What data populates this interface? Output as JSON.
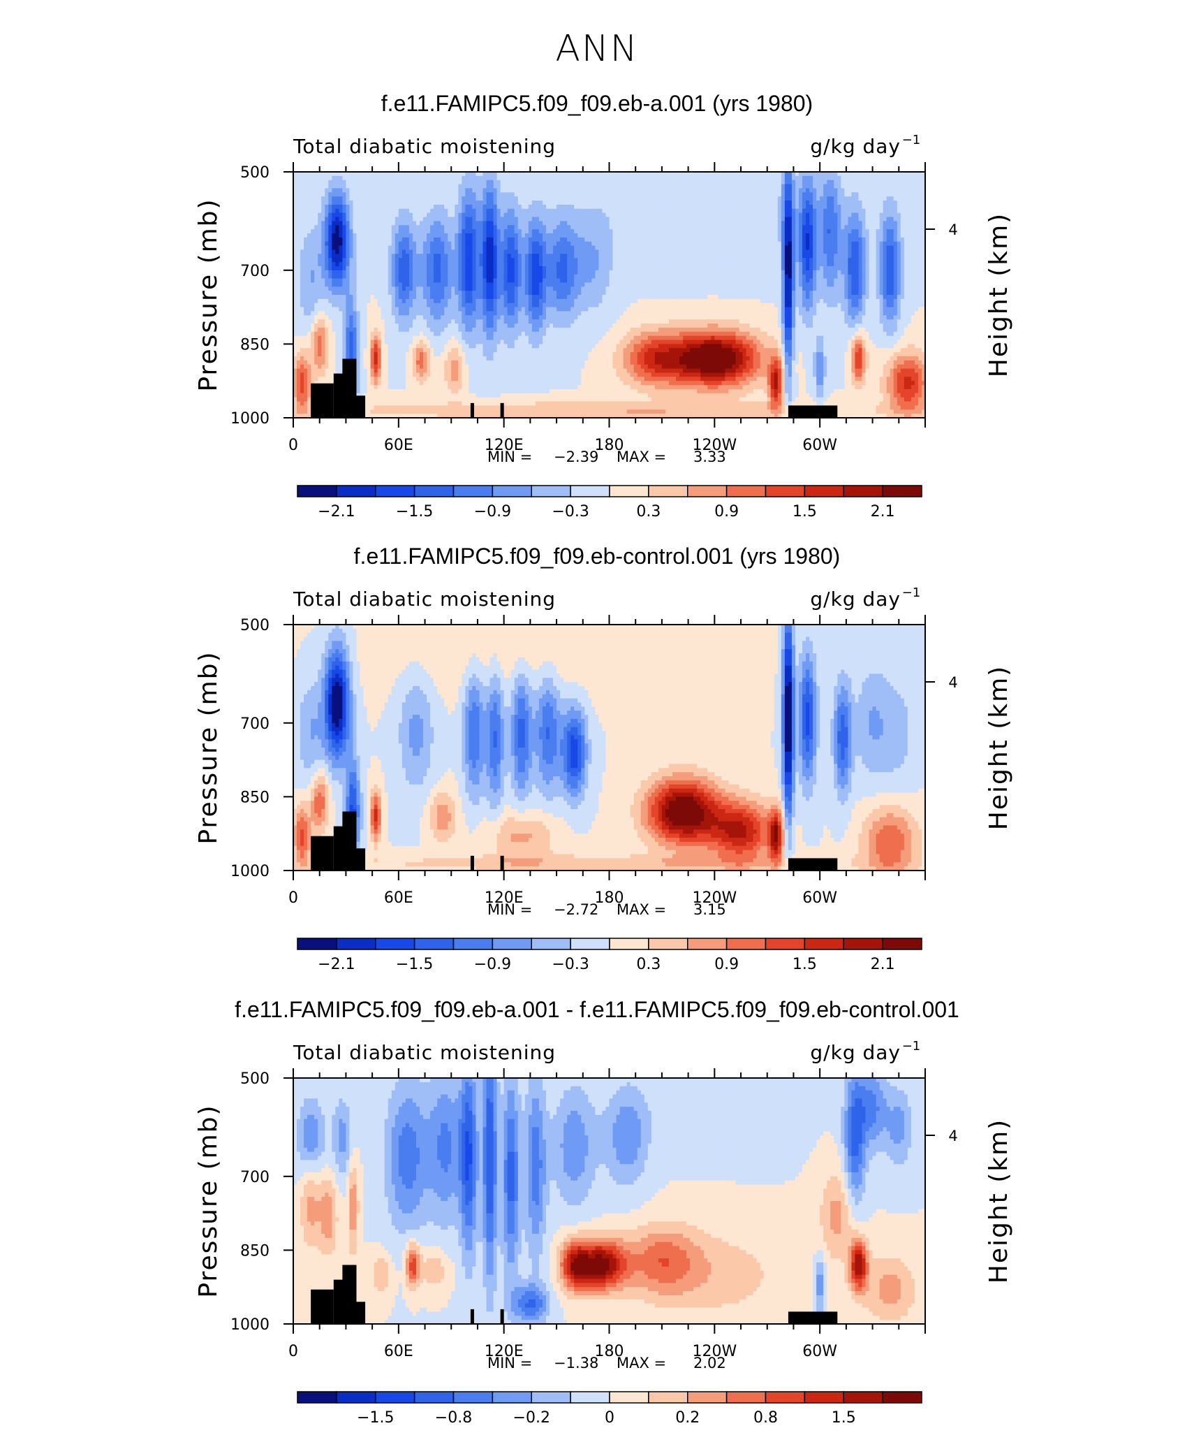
{
  "main_title": "ANN",
  "colors": {
    "neg": [
      "#08107e",
      "#0a2dc4",
      "#1848e8",
      "#2e63ea",
      "#4a7ef0",
      "#6f9bf5",
      "#9fbdf7",
      "#cfe0fb"
    ],
    "pos": [
      "#fde6d2",
      "#fbc8aa",
      "#f59c7a",
      "#ef6e4e",
      "#e4452a",
      "#cb2713",
      "#a51409",
      "#7d0a06"
    ],
    "topo": "#000000"
  },
  "chart_data": [
    {
      "type": "heatmap",
      "title": "f.e11.FAMIPC5.f09_f09.eb-a.001 (yrs 1980)",
      "left_label": "Total diabatic moistening",
      "units": "g/kg day",
      "units_exp": "−1",
      "ylabel": "Pressure (mb)",
      "ylabel_right": "Height (km)",
      "yticks": [
        "500",
        "700",
        "850",
        "1000"
      ],
      "ytick_values": [
        500,
        700,
        850,
        1000
      ],
      "right_tick": "4",
      "xticks": [
        "0",
        "60E",
        "120E",
        "180",
        "120W",
        "60W"
      ],
      "xtick_values": [
        0,
        60,
        120,
        180,
        240,
        300
      ],
      "xlim": [
        0,
        360
      ],
      "ylim": [
        500,
        1000
      ],
      "min_label": "MIN =",
      "min": "−2.39",
      "max_label": "MAX =",
      "max": "3.33",
      "colorbar_ticks": [
        "−2.1",
        "−1.5",
        "−0.9",
        "−0.3",
        "0.3",
        "0.9",
        "1.5",
        "2.1"
      ],
      "negative_blobs": [
        {
          "lon": 25,
          "p": 640,
          "amp": 2.3,
          "wlon": 7,
          "wp": 95
        },
        {
          "lon": 33,
          "p": 870,
          "amp": 1.4,
          "wlon": 4,
          "wp": 110
        },
        {
          "lon": 10,
          "p": 720,
          "amp": 0.6,
          "wlon": 8,
          "wp": 110
        },
        {
          "lon": 63,
          "p": 700,
          "amp": 1.4,
          "wlon": 7,
          "wp": 100
        },
        {
          "lon": 82,
          "p": 700,
          "amp": 1.3,
          "wlon": 9,
          "wp": 110
        },
        {
          "lon": 100,
          "p": 680,
          "amp": 1.8,
          "wlon": 6,
          "wp": 140
        },
        {
          "lon": 112,
          "p": 680,
          "amp": 2.0,
          "wlon": 5,
          "wp": 150
        },
        {
          "lon": 124,
          "p": 700,
          "amp": 1.6,
          "wlon": 6,
          "wp": 120
        },
        {
          "lon": 138,
          "p": 710,
          "amp": 1.7,
          "wlon": 6,
          "wp": 110
        },
        {
          "lon": 153,
          "p": 700,
          "amp": 1.2,
          "wlon": 9,
          "wp": 100
        },
        {
          "lon": 170,
          "p": 690,
          "amp": 0.6,
          "wlon": 12,
          "wp": 100
        },
        {
          "lon": 282,
          "p": 700,
          "amp": 2.3,
          "wlon": 3,
          "wp": 210
        },
        {
          "lon": 293,
          "p": 650,
          "amp": 1.7,
          "wlon": 5,
          "wp": 130
        },
        {
          "lon": 306,
          "p": 630,
          "amp": 1.1,
          "wlon": 6,
          "wp": 130
        },
        {
          "lon": 320,
          "p": 700,
          "amp": 1.5,
          "wlon": 6,
          "wp": 110
        },
        {
          "lon": 340,
          "p": 700,
          "amp": 1.5,
          "wlon": 6,
          "wp": 110
        },
        {
          "lon": 300,
          "p": 900,
          "amp": 0.9,
          "wlon": 3,
          "wp": 60
        },
        {
          "lon": 240,
          "p": 580,
          "amp": 0.3,
          "wlon": 80,
          "wp": 100
        }
      ],
      "positive_blobs": [
        {
          "lon": 240,
          "p": 880,
          "amp": 2.7,
          "wlon": 25,
          "wp": 55
        },
        {
          "lon": 205,
          "p": 880,
          "amp": 1.4,
          "wlon": 18,
          "wp": 55
        },
        {
          "lon": 275,
          "p": 930,
          "amp": 1.8,
          "wlon": 4,
          "wp": 50
        },
        {
          "lon": 322,
          "p": 880,
          "amp": 1.6,
          "wlon": 4,
          "wp": 50
        },
        {
          "lon": 350,
          "p": 930,
          "amp": 1.6,
          "wlon": 12,
          "wp": 60
        },
        {
          "lon": 47,
          "p": 880,
          "amp": 1.6,
          "wlon": 3,
          "wp": 50
        },
        {
          "lon": 73,
          "p": 885,
          "amp": 1.1,
          "wlon": 5,
          "wp": 40
        },
        {
          "lon": 5,
          "p": 930,
          "amp": 1.4,
          "wlon": 5,
          "wp": 60
        },
        {
          "lon": 15,
          "p": 850,
          "amp": 1.1,
          "wlon": 5,
          "wp": 60
        },
        {
          "lon": 92,
          "p": 900,
          "amp": 0.8,
          "wlon": 6,
          "wp": 50
        },
        {
          "lon": 175,
          "p": 985,
          "amp": 0.6,
          "wlon": 160,
          "wp": 18
        }
      ],
      "topography": [
        {
          "lon0": 10,
          "lon1": 23,
          "p": 930
        },
        {
          "lon0": 23,
          "lon1": 29,
          "p": 910
        },
        {
          "lon0": 28,
          "lon1": 36,
          "p": 880
        },
        {
          "lon0": 36,
          "lon1": 41,
          "p": 955
        },
        {
          "lon0": 101,
          "lon1": 103,
          "p": 970
        },
        {
          "lon0": 118,
          "lon1": 120,
          "p": 970
        },
        {
          "lon0": 282,
          "lon1": 310,
          "p": 975
        }
      ]
    },
    {
      "type": "heatmap",
      "title": "f.e11.FAMIPC5.f09_f09.eb-control.001 (yrs 1980)",
      "left_label": "Total diabatic moistening",
      "units": "g/kg day",
      "units_exp": "−1",
      "ylabel": "Pressure (mb)",
      "ylabel_right": "Height (km)",
      "yticks": [
        "500",
        "700",
        "850",
        "1000"
      ],
      "ytick_values": [
        500,
        700,
        850,
        1000
      ],
      "right_tick": "4",
      "xticks": [
        "0",
        "60E",
        "120E",
        "180",
        "120W",
        "60W"
      ],
      "xtick_values": [
        0,
        60,
        120,
        180,
        240,
        300
      ],
      "xlim": [
        0,
        360
      ],
      "ylim": [
        500,
        1000
      ],
      "min_label": "MIN =",
      "min": "−2.72",
      "max_label": "MAX =",
      "max": "3.15",
      "colorbar_ticks": [
        "−2.1",
        "−1.5",
        "−0.9",
        "−0.3",
        "0.3",
        "0.9",
        "1.5",
        "2.1"
      ],
      "negative_blobs": [
        {
          "lon": 25,
          "p": 660,
          "amp": 2.5,
          "wlon": 7,
          "wp": 110
        },
        {
          "lon": 34,
          "p": 880,
          "amp": 1.6,
          "wlon": 4,
          "wp": 100
        },
        {
          "lon": 10,
          "p": 720,
          "amp": 0.6,
          "wlon": 8,
          "wp": 110
        },
        {
          "lon": 70,
          "p": 720,
          "amp": 0.7,
          "wlon": 10,
          "wp": 120
        },
        {
          "lon": 103,
          "p": 720,
          "amp": 1.2,
          "wlon": 6,
          "wp": 130
        },
        {
          "lon": 115,
          "p": 730,
          "amp": 1.2,
          "wlon": 5,
          "wp": 140
        },
        {
          "lon": 130,
          "p": 720,
          "amp": 1.3,
          "wlon": 6,
          "wp": 130
        },
        {
          "lon": 145,
          "p": 720,
          "amp": 1.2,
          "wlon": 7,
          "wp": 120
        },
        {
          "lon": 160,
          "p": 760,
          "amp": 1.7,
          "wlon": 7,
          "wp": 90
        },
        {
          "lon": 282,
          "p": 690,
          "amp": 2.6,
          "wlon": 3,
          "wp": 210
        },
        {
          "lon": 293,
          "p": 690,
          "amp": 1.6,
          "wlon": 5,
          "wp": 130
        },
        {
          "lon": 313,
          "p": 730,
          "amp": 1.4,
          "wlon": 5,
          "wp": 110
        },
        {
          "lon": 330,
          "p": 700,
          "amp": 0.6,
          "wlon": 10,
          "wp": 120
        },
        {
          "lon": 345,
          "p": 720,
          "amp": 0.4,
          "wlon": 10,
          "wp": 120
        }
      ],
      "positive_blobs": [
        {
          "lon": 222,
          "p": 880,
          "amp": 2.6,
          "wlon": 20,
          "wp": 65
        },
        {
          "lon": 255,
          "p": 920,
          "amp": 1.8,
          "wlon": 18,
          "wp": 60
        },
        {
          "lon": 275,
          "p": 930,
          "amp": 1.8,
          "wlon": 4,
          "wp": 50
        },
        {
          "lon": 340,
          "p": 940,
          "amp": 1.2,
          "wlon": 15,
          "wp": 70
        },
        {
          "lon": 47,
          "p": 890,
          "amp": 1.6,
          "wlon": 3,
          "wp": 50
        },
        {
          "lon": 15,
          "p": 860,
          "amp": 1.2,
          "wlon": 5,
          "wp": 60
        },
        {
          "lon": 5,
          "p": 930,
          "amp": 1.3,
          "wlon": 5,
          "wp": 60
        },
        {
          "lon": 85,
          "p": 890,
          "amp": 0.8,
          "wlon": 8,
          "wp": 50
        },
        {
          "lon": 130,
          "p": 930,
          "amp": 0.7,
          "wlon": 20,
          "wp": 50
        },
        {
          "lon": 175,
          "p": 985,
          "amp": 0.5,
          "wlon": 160,
          "wp": 18
        },
        {
          "lon": 130,
          "p": 560,
          "amp": 0.3,
          "wlon": 80,
          "wp": 80
        }
      ],
      "topography": [
        {
          "lon0": 10,
          "lon1": 23,
          "p": 930
        },
        {
          "lon0": 23,
          "lon1": 29,
          "p": 910
        },
        {
          "lon0": 28,
          "lon1": 36,
          "p": 880
        },
        {
          "lon0": 36,
          "lon1": 41,
          "p": 955
        },
        {
          "lon0": 101,
          "lon1": 103,
          "p": 970
        },
        {
          "lon0": 118,
          "lon1": 120,
          "p": 970
        },
        {
          "lon0": 282,
          "lon1": 310,
          "p": 975
        }
      ]
    },
    {
      "type": "heatmap",
      "title": "f.e11.FAMIPC5.f09_f09.eb-a.001 - f.e11.FAMIPC5.f09_f09.eb-control.001",
      "left_label": "Total diabatic moistening",
      "units": "g/kg day",
      "units_exp": "−1",
      "ylabel": "Pressure (mb)",
      "ylabel_right": "Height (km)",
      "yticks": [
        "500",
        "700",
        "850",
        "1000"
      ],
      "ytick_values": [
        500,
        700,
        850,
        1000
      ],
      "right_tick": "4",
      "xticks": [
        "0",
        "60E",
        "120E",
        "180",
        "120W",
        "60W"
      ],
      "xtick_values": [
        0,
        60,
        120,
        180,
        240,
        300
      ],
      "xlim": [
        0,
        360
      ],
      "ylim": [
        500,
        1000
      ],
      "min_label": "MIN =",
      "min": "−1.38",
      "max_label": "MAX =",
      "max": "2.02",
      "colorbar_ticks": [
        "−1.5",
        "−0.8",
        "−0.2",
        "0",
        "0.2",
        "0.8",
        "1.5"
      ],
      "negative_blobs": [
        {
          "lon": 10,
          "p": 620,
          "amp": 0.7,
          "wlon": 8,
          "wp": 80
        },
        {
          "lon": 28,
          "p": 620,
          "amp": 0.6,
          "wlon": 6,
          "wp": 80
        },
        {
          "lon": 65,
          "p": 660,
          "amp": 0.9,
          "wlon": 12,
          "wp": 150
        },
        {
          "lon": 87,
          "p": 640,
          "amp": 0.8,
          "wlon": 10,
          "wp": 150
        },
        {
          "lon": 100,
          "p": 660,
          "amp": 1.2,
          "wlon": 5,
          "wp": 200
        },
        {
          "lon": 112,
          "p": 660,
          "amp": 1.3,
          "wlon": 4,
          "wp": 250
        },
        {
          "lon": 124,
          "p": 700,
          "amp": 1.1,
          "wlon": 5,
          "wp": 200
        },
        {
          "lon": 138,
          "p": 680,
          "amp": 0.9,
          "wlon": 6,
          "wp": 180
        },
        {
          "lon": 160,
          "p": 640,
          "amp": 0.7,
          "wlon": 12,
          "wp": 120
        },
        {
          "lon": 190,
          "p": 620,
          "amp": 0.7,
          "wlon": 12,
          "wp": 100
        },
        {
          "lon": 135,
          "p": 960,
          "amp": 1.0,
          "wlon": 10,
          "wp": 40
        },
        {
          "lon": 320,
          "p": 620,
          "amp": 1.1,
          "wlon": 6,
          "wp": 140
        },
        {
          "lon": 330,
          "p": 560,
          "amp": 0.8,
          "wlon": 8,
          "wp": 80
        },
        {
          "lon": 345,
          "p": 600,
          "amp": 0.6,
          "wlon": 8,
          "wp": 80
        },
        {
          "lon": 300,
          "p": 920,
          "amp": 0.7,
          "wlon": 3,
          "wp": 60
        },
        {
          "lon": 240,
          "p": 560,
          "amp": 0.2,
          "wlon": 40,
          "wp": 80
        }
      ],
      "positive_blobs": [
        {
          "lon": 175,
          "p": 880,
          "amp": 1.9,
          "wlon": 14,
          "wp": 50
        },
        {
          "lon": 160,
          "p": 880,
          "amp": 1.3,
          "wlon": 8,
          "wp": 50
        },
        {
          "lon": 210,
          "p": 870,
          "amp": 0.8,
          "wlon": 20,
          "wp": 70
        },
        {
          "lon": 240,
          "p": 900,
          "amp": 0.4,
          "wlon": 40,
          "wp": 90
        },
        {
          "lon": 322,
          "p": 880,
          "amp": 1.7,
          "wlon": 5,
          "wp": 50
        },
        {
          "lon": 310,
          "p": 780,
          "amp": 0.6,
          "wlon": 10,
          "wp": 90
        },
        {
          "lon": 68,
          "p": 880,
          "amp": 1.2,
          "wlon": 4,
          "wp": 45
        },
        {
          "lon": 10,
          "p": 760,
          "amp": 0.6,
          "wlon": 6,
          "wp": 90
        },
        {
          "lon": 20,
          "p": 780,
          "amp": 0.7,
          "wlon": 5,
          "wp": 80
        },
        {
          "lon": 34,
          "p": 760,
          "amp": 0.7,
          "wlon": 3,
          "wp": 100
        },
        {
          "lon": 340,
          "p": 930,
          "amp": 0.6,
          "wlon": 15,
          "wp": 70
        },
        {
          "lon": 80,
          "p": 890,
          "amp": 0.5,
          "wlon": 8,
          "wp": 40
        },
        {
          "lon": 50,
          "p": 900,
          "amp": 0.5,
          "wlon": 6,
          "wp": 40
        }
      ],
      "topography": [
        {
          "lon0": 10,
          "lon1": 23,
          "p": 930
        },
        {
          "lon0": 23,
          "lon1": 29,
          "p": 910
        },
        {
          "lon0": 28,
          "lon1": 36,
          "p": 880
        },
        {
          "lon0": 36,
          "lon1": 41,
          "p": 955
        },
        {
          "lon0": 101,
          "lon1": 103,
          "p": 970
        },
        {
          "lon0": 118,
          "lon1": 120,
          "p": 970
        },
        {
          "lon0": 282,
          "lon1": 310,
          "p": 975
        }
      ]
    }
  ]
}
